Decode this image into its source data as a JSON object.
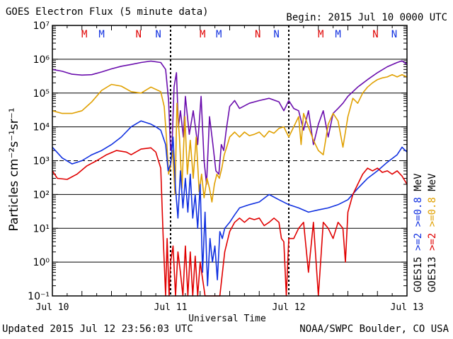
{
  "header": {
    "title": "GOES Electron Flux (5 minute data)",
    "begin": "Begin: 2015 Jul 10 0000 UTC"
  },
  "footer": {
    "updated": "Updated 2015 Jul 12 23:56:03 UTC",
    "source": "NOAA/SWPC Boulder, CO USA"
  },
  "chart_data": {
    "type": "line",
    "title": "GOES Electron Flux (5 minute data)",
    "xlabel": "Universal Time",
    "ylabel": "Particles cm⁻²s⁻¹sr⁻¹",
    "yscale": "log",
    "ylim": [
      0.1,
      10000000
    ],
    "xlim": [
      0,
      72
    ],
    "x_unit": "hours since 2015 Jul 10 0000 UTC",
    "x_ticks": [
      {
        "x": 0,
        "label": "Jul 10"
      },
      {
        "x": 24,
        "label": "Jul 11"
      },
      {
        "x": 48,
        "label": "Jul 12"
      },
      {
        "x": 72,
        "label": "Jul 13"
      }
    ],
    "y_ticks": [
      {
        "value": 0.1,
        "label": "10⁻¹"
      },
      {
        "value": 1,
        "label": "10⁰"
      },
      {
        "value": 10,
        "label": "10¹"
      },
      {
        "value": 100,
        "label": "10²"
      },
      {
        "value": 1000,
        "label": "10³"
      },
      {
        "value": 10000,
        "label": "10⁴"
      },
      {
        "value": 100000,
        "label": "10⁵"
      },
      {
        "value": 1000000,
        "label": "10⁶"
      },
      {
        "value": 10000000,
        "label": "10⁷"
      }
    ],
    "gridlines_y": [
      1,
      10,
      100,
      10000,
      100000,
      1000000
    ],
    "threshold_line": {
      "value": 1000,
      "style": "dashed"
    },
    "day_boundaries": [
      24,
      48
    ],
    "markers": [
      {
        "x": 6.5,
        "label": "M",
        "color": "#e00000"
      },
      {
        "x": 10.0,
        "label": "M",
        "color": "#1030e0"
      },
      {
        "x": 17.5,
        "label": "N",
        "color": "#e00000"
      },
      {
        "x": 21.5,
        "label": "N",
        "color": "#1030e0"
      },
      {
        "x": 30.5,
        "label": "M",
        "color": "#e00000"
      },
      {
        "x": 33.8,
        "label": "M",
        "color": "#1030e0"
      },
      {
        "x": 41.7,
        "label": "N",
        "color": "#e00000"
      },
      {
        "x": 45.5,
        "label": "N",
        "color": "#1030e0"
      },
      {
        "x": 54.5,
        "label": "M",
        "color": "#e00000"
      },
      {
        "x": 58.0,
        "label": "M",
        "color": "#1030e0"
      },
      {
        "x": 65.6,
        "label": "N",
        "color": "#e00000"
      },
      {
        "x": 69.4,
        "label": "N",
        "color": "#1030e0"
      }
    ],
    "side_legend": [
      {
        "label": "GOES15",
        "color": "#000000"
      },
      {
        "label": ">=2",
        "color": "#1030e0"
      },
      {
        "label": ">=0.8",
        "color": "#1030e0"
      },
      {
        "label": "MeV",
        "color": "#000000"
      },
      {
        "label": "GOES13",
        "color": "#000000"
      },
      {
        "label": ">=2",
        "color": "#e00000"
      },
      {
        "label": ">=0.8",
        "color": "#e0a000"
      },
      {
        "label": "MeV",
        "color": "#000000"
      }
    ],
    "series": [
      {
        "name": "GOES15 >=0.8 MeV",
        "color": "#6a0dad",
        "points": [
          [
            0,
            500000
          ],
          [
            2,
            440000
          ],
          [
            4,
            360000
          ],
          [
            6,
            340000
          ],
          [
            8,
            350000
          ],
          [
            10,
            420000
          ],
          [
            12,
            520000
          ],
          [
            14,
            620000
          ],
          [
            16,
            700000
          ],
          [
            18,
            800000
          ],
          [
            20,
            880000
          ],
          [
            22,
            800000
          ],
          [
            23,
            500000
          ],
          [
            23.6,
            60000
          ],
          [
            24,
            2000
          ],
          [
            24.3,
            3000
          ],
          [
            24.7,
            150000
          ],
          [
            25.2,
            400000
          ],
          [
            25.6,
            10000
          ],
          [
            26,
            30000
          ],
          [
            26.6,
            5000
          ],
          [
            27,
            80000
          ],
          [
            27.8,
            6000
          ],
          [
            28.6,
            30000
          ],
          [
            29.5,
            3000
          ],
          [
            30.2,
            80000
          ],
          [
            30.8,
            1000
          ],
          [
            31.3,
            200
          ],
          [
            31.9,
            20000
          ],
          [
            32.6,
            3000
          ],
          [
            33.2,
            500
          ],
          [
            33.8,
            400
          ],
          [
            34.3,
            3000
          ],
          [
            34.8,
            2000
          ],
          [
            35.3,
            8000
          ],
          [
            36,
            40000
          ],
          [
            37,
            60000
          ],
          [
            38,
            35000
          ],
          [
            40,
            50000
          ],
          [
            42,
            60000
          ],
          [
            44,
            70000
          ],
          [
            46,
            55000
          ],
          [
            47,
            30000
          ],
          [
            48,
            60000
          ],
          [
            49,
            35000
          ],
          [
            50,
            30000
          ],
          [
            51,
            8000
          ],
          [
            52,
            30000
          ],
          [
            53,
            3000
          ],
          [
            54,
            12000
          ],
          [
            55,
            30000
          ],
          [
            56,
            5000
          ],
          [
            57,
            25000
          ],
          [
            58,
            35000
          ],
          [
            59,
            50000
          ],
          [
            60,
            80000
          ],
          [
            62,
            150000
          ],
          [
            64,
            250000
          ],
          [
            66,
            400000
          ],
          [
            68,
            600000
          ],
          [
            70,
            800000
          ],
          [
            71,
            900000
          ],
          [
            72,
            700000
          ]
        ]
      },
      {
        "name": "GOES13 >=0.8 MeV",
        "color": "#e0a000",
        "points": [
          [
            0,
            30000
          ],
          [
            2,
            25000
          ],
          [
            4,
            25000
          ],
          [
            6,
            30000
          ],
          [
            8,
            55000
          ],
          [
            10,
            120000
          ],
          [
            12,
            180000
          ],
          [
            14,
            160000
          ],
          [
            16,
            110000
          ],
          [
            18,
            100000
          ],
          [
            20,
            150000
          ],
          [
            22,
            110000
          ],
          [
            22.7,
            40000
          ],
          [
            23.2,
            4000
          ],
          [
            23.6,
            400
          ],
          [
            24,
            700
          ],
          [
            24.4,
            2000
          ],
          [
            24.9,
            100
          ],
          [
            25.3,
            50000
          ],
          [
            25.8,
            5000
          ],
          [
            26.3,
            150
          ],
          [
            26.9,
            20000
          ],
          [
            27.4,
            400
          ],
          [
            28,
            4000
          ],
          [
            28.6,
            300
          ],
          [
            29.2,
            5000
          ],
          [
            29.8,
            120
          ],
          [
            30.3,
            400
          ],
          [
            30.8,
            80
          ],
          [
            31.4,
            300
          ],
          [
            31.9,
            150
          ],
          [
            32.4,
            60
          ],
          [
            32.9,
            200
          ],
          [
            33.4,
            400
          ],
          [
            33.9,
            300
          ],
          [
            34.4,
            600
          ],
          [
            34.9,
            1500
          ],
          [
            35.4,
            2500
          ],
          [
            36,
            5000
          ],
          [
            37,
            7000
          ],
          [
            38,
            5000
          ],
          [
            39,
            7000
          ],
          [
            40,
            5500
          ],
          [
            41,
            6000
          ],
          [
            42,
            7000
          ],
          [
            43,
            5000
          ],
          [
            44,
            7500
          ],
          [
            45,
            6500
          ],
          [
            46,
            9000
          ],
          [
            47,
            10000
          ],
          [
            48,
            5000
          ],
          [
            49,
            10000
          ],
          [
            50,
            20000
          ],
          [
            50.5,
            3000
          ],
          [
            51,
            25000
          ],
          [
            52,
            10000
          ],
          [
            53,
            4000
          ],
          [
            54,
            2000
          ],
          [
            55,
            1500
          ],
          [
            56,
            12000
          ],
          [
            57,
            25000
          ],
          [
            58,
            15000
          ],
          [
            59,
            2500
          ],
          [
            60,
            20000
          ],
          [
            61,
            70000
          ],
          [
            62,
            50000
          ],
          [
            63,
            100000
          ],
          [
            64,
            150000
          ],
          [
            65,
            200000
          ],
          [
            66,
            250000
          ],
          [
            67,
            280000
          ],
          [
            68,
            300000
          ],
          [
            69,
            350000
          ],
          [
            70,
            300000
          ],
          [
            71,
            350000
          ],
          [
            72,
            300000
          ]
        ]
      },
      {
        "name": "GOES15 >=2 MeV",
        "color": "#1030e0",
        "points": [
          [
            0,
            2500
          ],
          [
            2,
            1200
          ],
          [
            4,
            800
          ],
          [
            6,
            1000
          ],
          [
            8,
            1500
          ],
          [
            10,
            2000
          ],
          [
            12,
            3000
          ],
          [
            14,
            5000
          ],
          [
            16,
            10000
          ],
          [
            18,
            15000
          ],
          [
            20,
            12000
          ],
          [
            21,
            10000
          ],
          [
            22,
            8000
          ],
          [
            23,
            3000
          ],
          [
            23.5,
            500
          ],
          [
            24,
            800
          ],
          [
            24.5,
            5000
          ],
          [
            25,
            150
          ],
          [
            25.5,
            20
          ],
          [
            26,
            500
          ],
          [
            26.5,
            40
          ],
          [
            27,
            300
          ],
          [
            27.5,
            30
          ],
          [
            28,
            400
          ],
          [
            28.5,
            20
          ],
          [
            29,
            100
          ],
          [
            29.5,
            10
          ],
          [
            30,
            200
          ],
          [
            30.5,
            0.5
          ],
          [
            31,
            30
          ],
          [
            31.5,
            0.2
          ],
          [
            32,
            5
          ],
          [
            32.5,
            1
          ],
          [
            33,
            3
          ],
          [
            33.5,
            0.3
          ],
          [
            34,
            8
          ],
          [
            34.5,
            5
          ],
          [
            35,
            10
          ],
          [
            36,
            15
          ],
          [
            37,
            25
          ],
          [
            38,
            40
          ],
          [
            40,
            50
          ],
          [
            42,
            60
          ],
          [
            44,
            100
          ],
          [
            46,
            70
          ],
          [
            48,
            50
          ],
          [
            50,
            40
          ],
          [
            52,
            30
          ],
          [
            54,
            35
          ],
          [
            56,
            40
          ],
          [
            58,
            50
          ],
          [
            60,
            70
          ],
          [
            62,
            150
          ],
          [
            64,
            300
          ],
          [
            66,
            500
          ],
          [
            68,
            900
          ],
          [
            70,
            1500
          ],
          [
            71,
            2500
          ],
          [
            72,
            1800
          ]
        ]
      },
      {
        "name": "GOES13 >=2 MeV",
        "color": "#e00000",
        "points": [
          [
            0,
            500
          ],
          [
            1,
            300
          ],
          [
            3,
            280
          ],
          [
            5,
            400
          ],
          [
            7,
            700
          ],
          [
            9,
            1000
          ],
          [
            11,
            1500
          ],
          [
            13,
            2000
          ],
          [
            15,
            1800
          ],
          [
            16,
            1500
          ],
          [
            18,
            2200
          ],
          [
            20,
            2400
          ],
          [
            21,
            1800
          ],
          [
            22,
            600
          ],
          [
            22.5,
            5
          ],
          [
            23,
            0.1
          ],
          [
            23.3,
            5
          ],
          [
            23.7,
            0.1
          ],
          [
            24,
            1
          ],
          [
            24.5,
            3
          ],
          [
            25,
            0.1
          ],
          [
            25.5,
            2
          ],
          [
            26,
            0.5
          ],
          [
            26.5,
            0.1
          ],
          [
            27,
            3
          ],
          [
            27.5,
            0.1
          ],
          [
            28,
            2
          ],
          [
            28.5,
            0.1
          ],
          [
            29,
            1.5
          ],
          [
            29.5,
            0.1
          ],
          [
            30,
            1
          ],
          [
            31,
            0.1
          ],
          [
            32,
            0.1
          ],
          [
            33,
            0.1
          ],
          [
            34,
            0.1
          ],
          [
            35,
            2
          ],
          [
            36,
            8
          ],
          [
            37,
            15
          ],
          [
            38,
            20
          ],
          [
            39,
            15
          ],
          [
            40,
            20
          ],
          [
            41,
            18
          ],
          [
            42,
            20
          ],
          [
            43,
            12
          ],
          [
            44,
            15
          ],
          [
            45,
            20
          ],
          [
            46,
            15
          ],
          [
            46.5,
            5
          ],
          [
            47,
            4
          ],
          [
            47.5,
            0.1
          ],
          [
            48,
            5
          ],
          [
            49,
            5
          ],
          [
            50,
            10
          ],
          [
            51,
            15
          ],
          [
            52,
            0.5
          ],
          [
            53,
            15
          ],
          [
            54,
            0.1
          ],
          [
            55,
            15
          ],
          [
            56,
            10
          ],
          [
            57,
            5
          ],
          [
            58,
            15
          ],
          [
            59,
            10
          ],
          [
            59.5,
            1
          ],
          [
            60,
            30
          ],
          [
            61,
            100
          ],
          [
            62,
            200
          ],
          [
            63,
            400
          ],
          [
            64,
            600
          ],
          [
            65,
            500
          ],
          [
            66,
            600
          ],
          [
            67,
            450
          ],
          [
            68,
            500
          ],
          [
            69,
            400
          ],
          [
            70,
            500
          ],
          [
            71,
            350
          ],
          [
            72,
            200
          ]
        ]
      }
    ]
  }
}
